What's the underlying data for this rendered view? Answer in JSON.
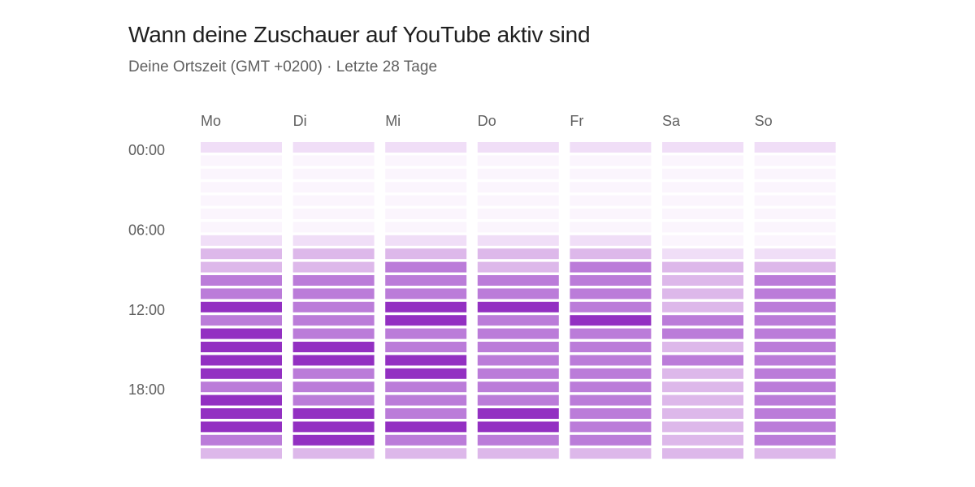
{
  "header": {
    "title": "Wann deine Zuschauer auf YouTube aktiv sind",
    "subtitle": "Deine Ortszeit (GMT +0200) · Letzte 28 Tage"
  },
  "colors": {
    "level_0": "#fbf5fd",
    "level_1": "#f0def7",
    "level_2": "#ddb8ea",
    "level_3": "#bb7cd9",
    "level_4": "#9330c2",
    "label_text": "#606060",
    "title_text": "#1f1f1f"
  },
  "chart_data": {
    "type": "heatmap",
    "title": "Wann deine Zuschauer auf YouTube aktiv sind",
    "subtitle": "Deine Ortszeit (GMT +0200) · Letzte 28 Tage",
    "x_labels": [
      "Mo",
      "Di",
      "Mi",
      "Do",
      "Fr",
      "Sa",
      "So"
    ],
    "y_labels": [
      "00:00",
      "06:00",
      "12:00",
      "18:00"
    ],
    "hours": [
      0,
      1,
      2,
      3,
      4,
      5,
      6,
      7,
      8,
      9,
      10,
      11,
      12,
      13,
      14,
      15,
      16,
      17,
      18,
      19,
      20,
      21,
      22,
      23
    ],
    "value_scale": "relative activity level 0 (low) – 4 (high)",
    "values": [
      [
        1,
        1,
        1,
        1,
        1,
        1,
        1
      ],
      [
        0,
        0,
        0,
        0,
        0,
        0,
        0
      ],
      [
        0,
        0,
        0,
        0,
        0,
        0,
        0
      ],
      [
        0,
        0,
        0,
        0,
        0,
        0,
        0
      ],
      [
        0,
        0,
        0,
        0,
        0,
        0,
        0
      ],
      [
        0,
        0,
        0,
        0,
        0,
        0,
        0
      ],
      [
        0,
        0,
        0,
        0,
        0,
        0,
        0
      ],
      [
        1,
        1,
        1,
        1,
        1,
        0,
        0
      ],
      [
        2,
        2,
        2,
        2,
        2,
        1,
        1
      ],
      [
        2,
        2,
        3,
        2,
        3,
        2,
        2
      ],
      [
        3,
        3,
        3,
        3,
        3,
        2,
        3
      ],
      [
        3,
        3,
        3,
        3,
        3,
        2,
        3
      ],
      [
        4,
        3,
        4,
        4,
        3,
        2,
        3
      ],
      [
        3,
        3,
        4,
        3,
        4,
        3,
        3
      ],
      [
        4,
        3,
        3,
        3,
        3,
        3,
        3
      ],
      [
        4,
        4,
        3,
        3,
        3,
        2,
        3
      ],
      [
        4,
        4,
        4,
        3,
        3,
        3,
        3
      ],
      [
        4,
        3,
        4,
        3,
        3,
        2,
        3
      ],
      [
        3,
        3,
        3,
        3,
        3,
        2,
        3
      ],
      [
        4,
        3,
        3,
        3,
        3,
        2,
        3
      ],
      [
        4,
        4,
        3,
        4,
        3,
        2,
        3
      ],
      [
        4,
        4,
        4,
        4,
        3,
        2,
        3
      ],
      [
        3,
        4,
        3,
        3,
        3,
        2,
        3
      ],
      [
        2,
        2,
        2,
        2,
        2,
        2,
        2
      ]
    ]
  }
}
